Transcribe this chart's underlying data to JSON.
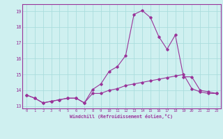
{
  "xlabel": "Windchill (Refroidissement éolien,°C)",
  "x": [
    0,
    1,
    2,
    3,
    4,
    5,
    6,
    7,
    8,
    9,
    10,
    11,
    12,
    13,
    14,
    15,
    16,
    17,
    18,
    19,
    20,
    21,
    22,
    23
  ],
  "line1": [
    13.7,
    13.5,
    13.2,
    13.3,
    13.4,
    13.5,
    13.5,
    13.2,
    13.8,
    13.8,
    14.0,
    14.1,
    14.3,
    14.4,
    14.5,
    14.6,
    14.7,
    14.8,
    14.9,
    15.0,
    14.1,
    13.9,
    13.8,
    13.8
  ],
  "line2": [
    13.7,
    13.5,
    13.2,
    13.3,
    13.4,
    13.5,
    13.5,
    13.2,
    14.05,
    14.4,
    15.2,
    15.5,
    16.2,
    18.8,
    19.05,
    18.6,
    17.4,
    16.6,
    17.5,
    14.85,
    14.85,
    14.0,
    13.9,
    13.8
  ],
  "bg_color": "#cff0f0",
  "grid_color": "#aadddd",
  "line_color": "#993399",
  "ylim_min": 12.85,
  "ylim_max": 19.45,
  "yticks": [
    13,
    14,
    15,
    16,
    17,
    18,
    19
  ],
  "xticks": [
    0,
    1,
    2,
    3,
    4,
    5,
    6,
    7,
    8,
    9,
    10,
    11,
    12,
    13,
    14,
    15,
    16,
    17,
    18,
    19,
    20,
    21,
    22,
    23
  ]
}
